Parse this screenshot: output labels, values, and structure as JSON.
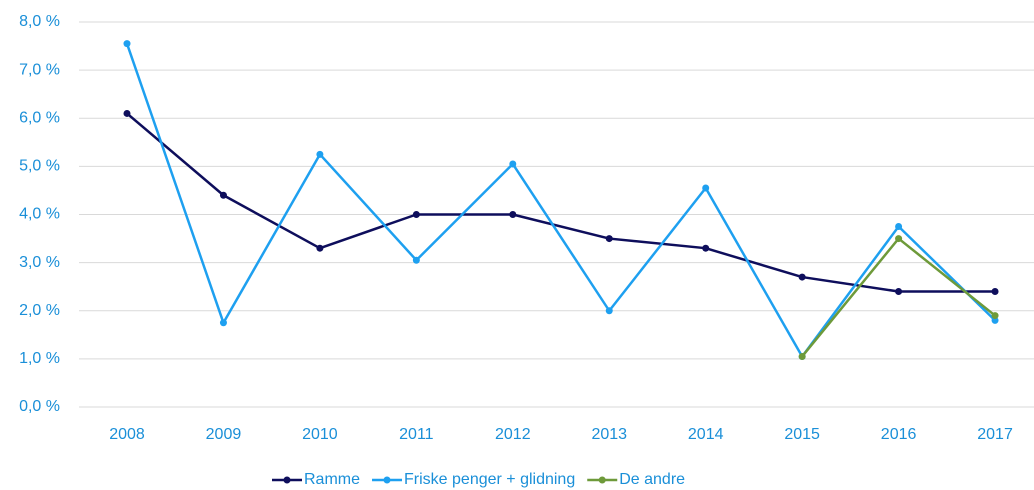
{
  "chart_data": {
    "type": "line",
    "categories": [
      "2008",
      "2009",
      "2010",
      "2011",
      "2012",
      "2013",
      "2014",
      "2015",
      "2016",
      "2017"
    ],
    "series": [
      {
        "name": "Ramme",
        "color": "#0e0e5c",
        "values": [
          6.1,
          4.4,
          3.3,
          4.0,
          4.0,
          3.5,
          3.3,
          2.7,
          2.4,
          2.4
        ]
      },
      {
        "name": "Friske penger + glidning",
        "color": "#1ea0f0",
        "values": [
          7.55,
          1.75,
          5.25,
          3.05,
          5.05,
          2.0,
          4.55,
          1.05,
          3.75,
          1.8
        ]
      },
      {
        "name": "De andre",
        "color": "#6e9a3a",
        "values": [
          null,
          null,
          null,
          null,
          null,
          null,
          null,
          1.05,
          3.5,
          1.9
        ]
      }
    ],
    "ylim": [
      0,
      8
    ],
    "yticks": [
      {
        "value": 0,
        "label": "0,0 %"
      },
      {
        "value": 1,
        "label": "1,0 %"
      },
      {
        "value": 2,
        "label": "2,0 %"
      },
      {
        "value": 3,
        "label": "3,0 %"
      },
      {
        "value": 4,
        "label": "4,0 %"
      },
      {
        "value": 5,
        "label": "5,0 %"
      },
      {
        "value": 6,
        "label": "6,0 %"
      },
      {
        "value": 7,
        "label": "7,0 %"
      },
      {
        "value": 8,
        "label": "8,0 %"
      }
    ],
    "grid": true,
    "legend": "bottom"
  }
}
